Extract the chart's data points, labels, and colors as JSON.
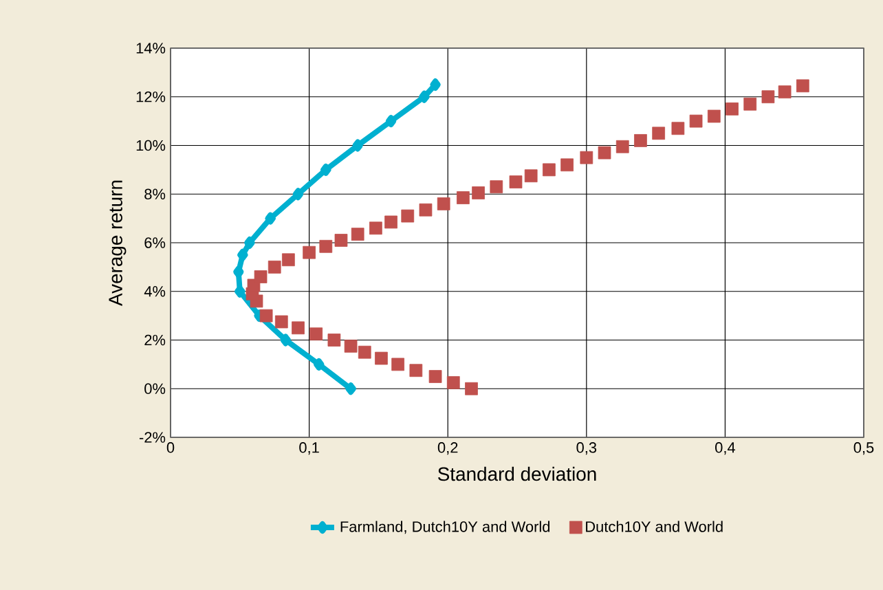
{
  "chart_data": {
    "type": "scatter",
    "xlabel": "Standard deviation",
    "ylabel": "Average return",
    "xlim": [
      0,
      0.5
    ],
    "xticks": [
      0,
      {
        "value": 0.1,
        "label": "0,1"
      },
      {
        "value": 0.2,
        "label": "0,2"
      },
      {
        "value": 0.3,
        "label": "0,3"
      },
      {
        "value": 0.4,
        "label": "0,4"
      },
      {
        "value": 0.5,
        "label": "0,5"
      }
    ],
    "ylim": [
      -2,
      14
    ],
    "yticks": [
      {
        "value": -2,
        "label": "-2%"
      },
      {
        "value": 0,
        "label": "0%"
      },
      {
        "value": 2,
        "label": "2%"
      },
      {
        "value": 4,
        "label": "4%"
      },
      {
        "value": 6,
        "label": "6%"
      },
      {
        "value": 8,
        "label": "8%"
      },
      {
        "value": 10,
        "label": "10%"
      },
      {
        "value": 12,
        "label": "12%"
      },
      {
        "value": 14,
        "label": "14%"
      }
    ],
    "grid": true,
    "legend": "bottom",
    "series": [
      {
        "name": "Farmland, Dutch10Y and World",
        "color": "#00b0d0",
        "type": "line",
        "marker": "diamond",
        "line_style": "solid",
        "x": [
          0.13,
          0.107,
          0.083,
          0.064,
          0.05,
          0.049,
          0.052,
          0.057,
          0.072,
          0.092,
          0.112,
          0.135,
          0.159,
          0.183,
          0.191
        ],
        "values": [
          0,
          1,
          2,
          3,
          4,
          4.8,
          5.5,
          6,
          7,
          8,
          9,
          10,
          11,
          12,
          12.5
        ]
      },
      {
        "name": "Dutch10Y and World",
        "color": "#c0504d",
        "marker": "square",
        "x": [
          0.217,
          0.204,
          0.191,
          0.177,
          0.164,
          0.152,
          0.14,
          0.13,
          0.118,
          0.105,
          0.092,
          0.08,
          0.069,
          0.062,
          0.059,
          0.06,
          0.065,
          0.075,
          0.085,
          0.1,
          0.112,
          0.123,
          0.135,
          0.148,
          0.159,
          0.171,
          0.184,
          0.197,
          0.211,
          0.222,
          0.235,
          0.249,
          0.26,
          0.273,
          0.286,
          0.3,
          0.313,
          0.326,
          0.339,
          0.352,
          0.366,
          0.379,
          0.392,
          0.405,
          0.418,
          0.431,
          0.443,
          0.456
        ],
        "values": [
          0,
          0.25,
          0.5,
          0.75,
          1,
          1.25,
          1.5,
          1.75,
          2,
          2.25,
          2.5,
          2.75,
          3,
          3.6,
          3.9,
          4.25,
          4.6,
          5,
          5.3,
          5.6,
          5.85,
          6.1,
          6.35,
          6.6,
          6.85,
          7.1,
          7.35,
          7.6,
          7.85,
          8.05,
          8.3,
          8.5,
          8.75,
          9,
          9.2,
          9.5,
          9.7,
          9.95,
          10.2,
          10.5,
          10.7,
          11,
          11.2,
          11.5,
          11.7,
          12,
          12.2,
          12.45
        ]
      }
    ]
  }
}
